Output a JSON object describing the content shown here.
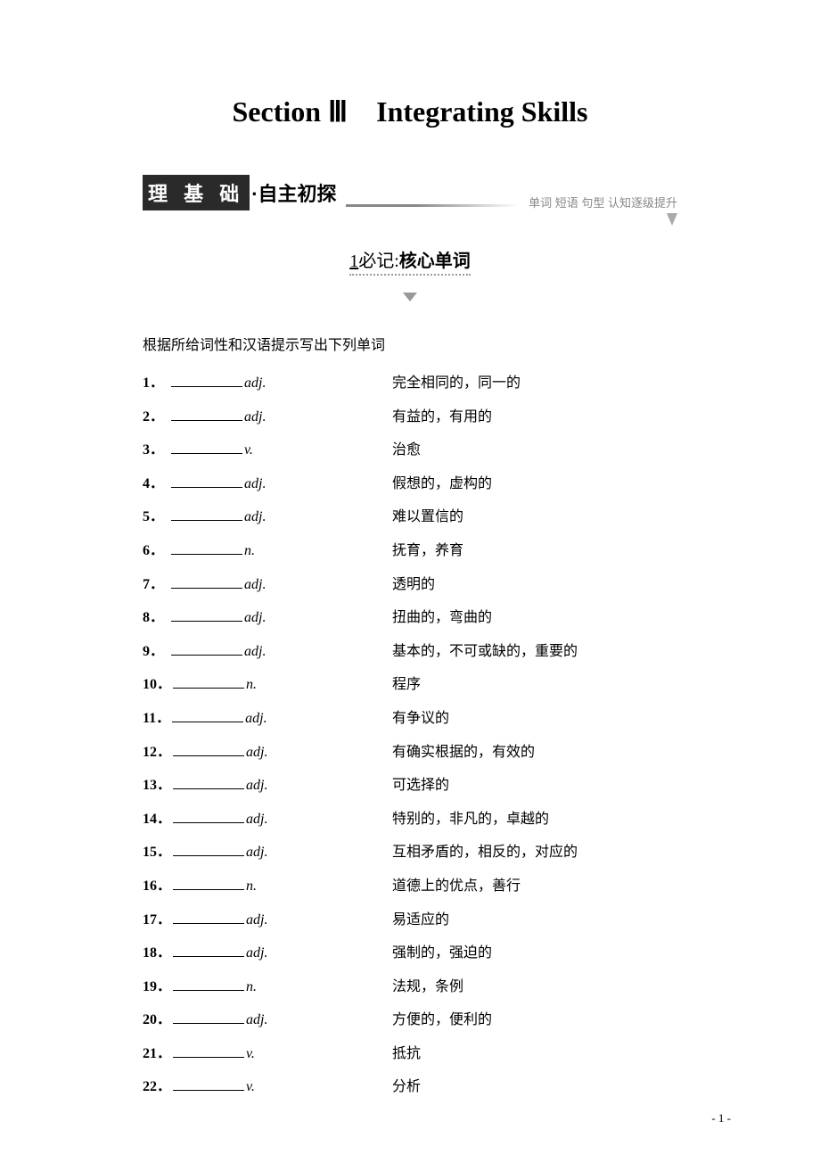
{
  "title": "Section Ⅲ　Integrating Skills",
  "header": {
    "boxed": "理 基 础",
    "rest": "·自主初探",
    "right": "单词 短语 句型  认知逐级提升"
  },
  "subtitle": {
    "prefix": "1",
    "label_normal": "必记:",
    "label_bold": "核心单词"
  },
  "instruction": "根据所给词性和汉语提示写出下列单词",
  "items": [
    {
      "num": "1．",
      "pos": "adj.",
      "meaning": "完全相同的，同一的"
    },
    {
      "num": "2．",
      "pos": "adj.",
      "meaning": "有益的，有用的"
    },
    {
      "num": "3．",
      "pos": "v.",
      "meaning": "治愈"
    },
    {
      "num": "4．",
      "pos": "adj.",
      "meaning": "假想的，虚构的"
    },
    {
      "num": "5．",
      "pos": "adj.",
      "meaning": "难以置信的"
    },
    {
      "num": "6．",
      "pos": "n.",
      "meaning": "抚育，养育"
    },
    {
      "num": "7．",
      "pos": "adj.",
      "meaning": "透明的"
    },
    {
      "num": "8．",
      "pos": "adj.",
      "meaning": "扭曲的，弯曲的"
    },
    {
      "num": "9．",
      "pos": "adj.",
      "meaning": "基本的，不可或缺的，重要的"
    },
    {
      "num": "10．",
      "pos": "n.",
      "meaning": "程序"
    },
    {
      "num": "11．",
      "pos": "adj.",
      "meaning": "有争议的"
    },
    {
      "num": "12．",
      "pos": "adj.",
      "meaning": "有确实根据的，有效的"
    },
    {
      "num": "13．",
      "pos": "adj.",
      "meaning": "可选择的"
    },
    {
      "num": "14．",
      "pos": "adj.",
      "meaning": "特别的，非凡的，卓越的"
    },
    {
      "num": "15．",
      "pos": "adj.",
      "meaning": "互相矛盾的，相反的，对应的"
    },
    {
      "num": "16．",
      "pos": "n.",
      "meaning": "道德上的优点，善行"
    },
    {
      "num": "17．",
      "pos": "adj.",
      "meaning": "易适应的"
    },
    {
      "num": "18．",
      "pos": "adj.",
      "meaning": "强制的，强迫的"
    },
    {
      "num": "19．",
      "pos": "n.",
      "meaning": "法规，条例"
    },
    {
      "num": "20．",
      "pos": "adj.",
      "meaning": "方便的，便利的"
    },
    {
      "num": "21．",
      "pos": "v.",
      "meaning": "抵抗"
    },
    {
      "num": "22．",
      "pos": "v.",
      "meaning": "分析"
    }
  ],
  "page_number": "- 1 -"
}
